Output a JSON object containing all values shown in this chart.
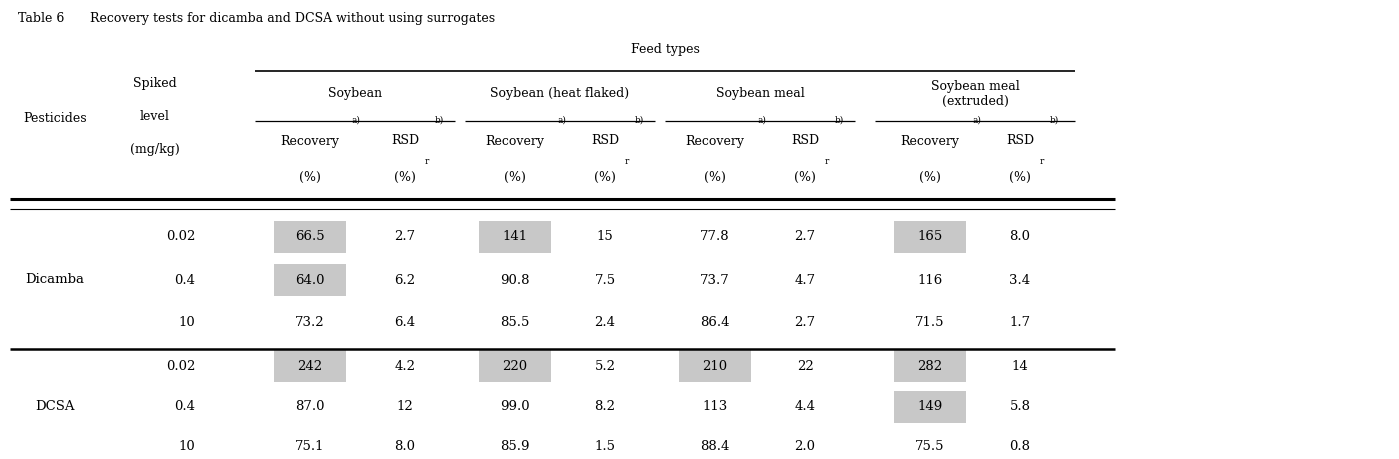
{
  "title_left": "Table 6",
  "title_right": "Recovery tests for dicamba and DCSA without using surrogates",
  "feed_types_label": "Feed types",
  "col_groups": [
    "Soybean",
    "Soybean (heat flaked)",
    "Soybean meal",
    "Soybean meal\n(extruded)"
  ],
  "row_groups": [
    {
      "pesticide": "Dicamba",
      "rows": [
        {
          "level": "0.02",
          "values": [
            "66.5",
            "2.7",
            "141",
            "15",
            "77.8",
            "2.7",
            "165",
            "8.0"
          ],
          "highlighted": [
            0,
            2,
            6
          ]
        },
        {
          "level": "0.4",
          "values": [
            "64.0",
            "6.2",
            "90.8",
            "7.5",
            "73.7",
            "4.7",
            "116",
            "3.4"
          ],
          "highlighted": [
            0
          ]
        },
        {
          "level": "10",
          "values": [
            "73.2",
            "6.4",
            "85.5",
            "2.4",
            "86.4",
            "2.7",
            "71.5",
            "1.7"
          ],
          "highlighted": []
        }
      ]
    },
    {
      "pesticide": "DCSA",
      "rows": [
        {
          "level": "0.02",
          "values": [
            "242",
            "4.2",
            "220",
            "5.2",
            "210",
            "22",
            "282",
            "14"
          ],
          "highlighted": [
            0,
            2,
            4,
            6
          ]
        },
        {
          "level": "0.4",
          "values": [
            "87.0",
            "12",
            "99.0",
            "8.2",
            "113",
            "4.4",
            "149",
            "5.8"
          ],
          "highlighted": [
            6
          ]
        },
        {
          "level": "10",
          "values": [
            "75.1",
            "8.0",
            "85.9",
            "1.5",
            "88.4",
            "2.0",
            "75.5",
            "0.8"
          ],
          "highlighted": []
        }
      ]
    }
  ],
  "highlight_color": "#c8c8c8",
  "background_color": "#ffffff",
  "text_color": "#000000",
  "fontsize_title": 9,
  "fontsize_header": 9,
  "fontsize_data": 9.5
}
